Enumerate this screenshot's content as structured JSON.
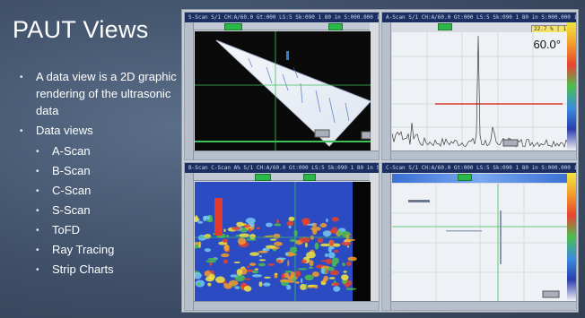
{
  "slide": {
    "title": "PAUT Views",
    "bullets": [
      {
        "text": "A data view is a 2D graphic rendering of the ultrasonic data"
      },
      {
        "text": "Data views",
        "sub": [
          "A-Scan",
          "B-Scan",
          "C-Scan",
          "S-Scan",
          "ToFD",
          "Ray Tracing",
          "Strip Charts"
        ]
      }
    ]
  },
  "views": {
    "sscan": {
      "header": "S-Scan S/1 CH:A/60.0 Gt:000 LS:5 Sk:090 1 80 in  S:000.000 in"
    },
    "ascan": {
      "header": "A-Scan S/1 CH:A/60.0 Gt:000 LS:5 Sk:090 1 80 in  S:000.000 in",
      "angle": "60.0°",
      "amplitude": "22.7 % | 1.7 %"
    },
    "bscan": {
      "header": "B-Scan C-Scan A% S/1 CH:A/60.0 Gt:000 LS:5 Sk:090 1 80 in  S:000.0"
    },
    "cscan": {
      "header": "C-Scan S/1 CH:A/60.0 Gt:000 LS:5 Sk:090 1 80 in  S:000.000 in"
    }
  },
  "colors": {
    "background": "#3f5068",
    "header": "#1c2f62",
    "tag": "#2db84a",
    "cursor_red": "#d83a2a"
  }
}
